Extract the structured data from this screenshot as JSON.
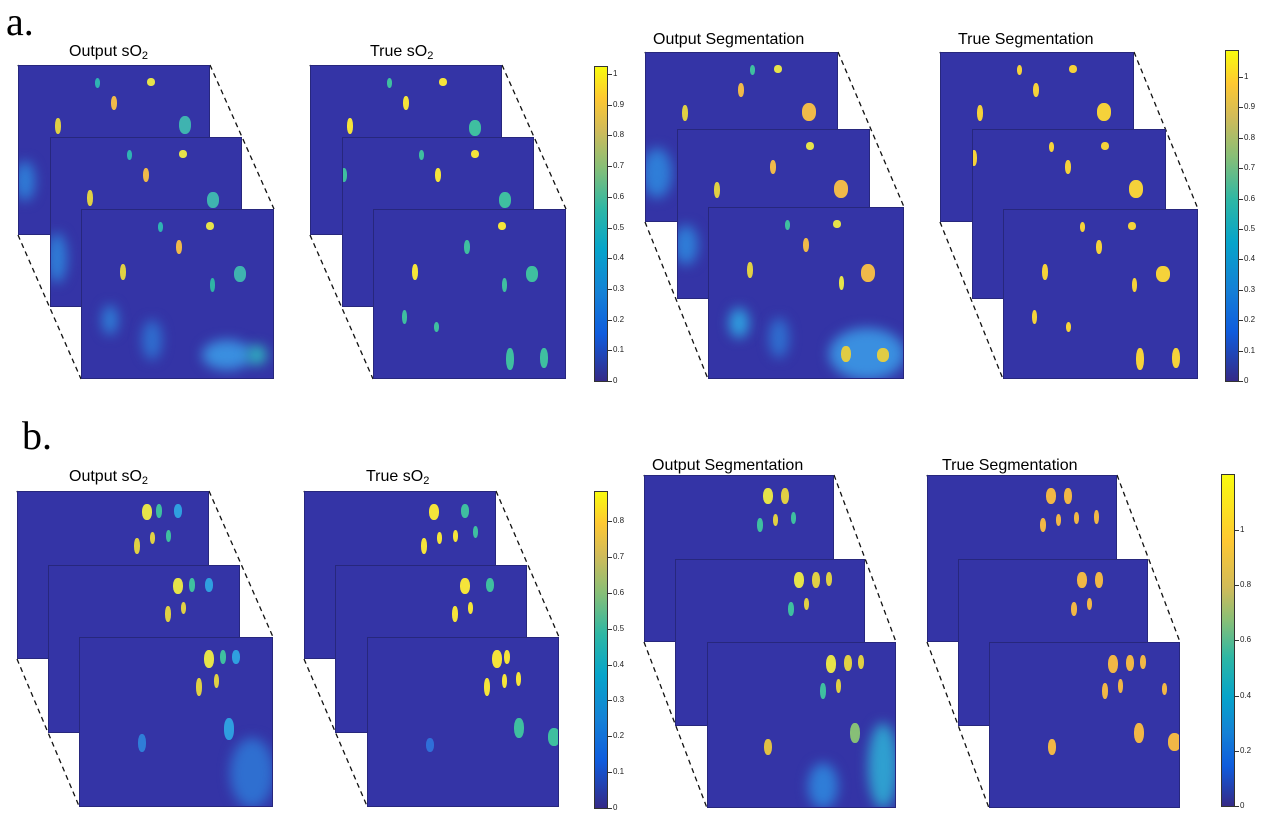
{
  "figure": {
    "panel_a_label": "a.",
    "panel_b_label": "b.",
    "titles": {
      "output_so2": "Output sO",
      "true_so2": "True sO",
      "so2_subscript": "2",
      "output_segmentation": "Output Segmentation",
      "true_segmentation": "True Segmentation"
    },
    "colorbars": {
      "a_so2_ticks": [
        "1",
        "0.9",
        "0.8",
        "0.7",
        "0.6",
        "0.5",
        "0.4",
        "0.3",
        "0.2",
        "0.1",
        "0"
      ],
      "a_seg_ticks": [
        "1",
        "0.9",
        "0.8",
        "0.7",
        "0.6",
        "0.5",
        "0.4",
        "0.3",
        "0.2",
        "0.1",
        "0"
      ],
      "b_so2_ticks": [
        "0.8",
        "0.7",
        "0.6",
        "0.5",
        "0.4",
        "0.3",
        "0.2",
        "0.1",
        "0"
      ],
      "b_seg_ticks": [
        "1",
        "0.8",
        "0.6",
        "0.4",
        "0.2",
        "0"
      ]
    },
    "colors": {
      "background_volume": "#3434a6",
      "vessel_high": "#f5e43a",
      "vessel_mid": "#3fbfa0",
      "vessel_orange": "#f1b746",
      "colormap": "parula"
    }
  }
}
